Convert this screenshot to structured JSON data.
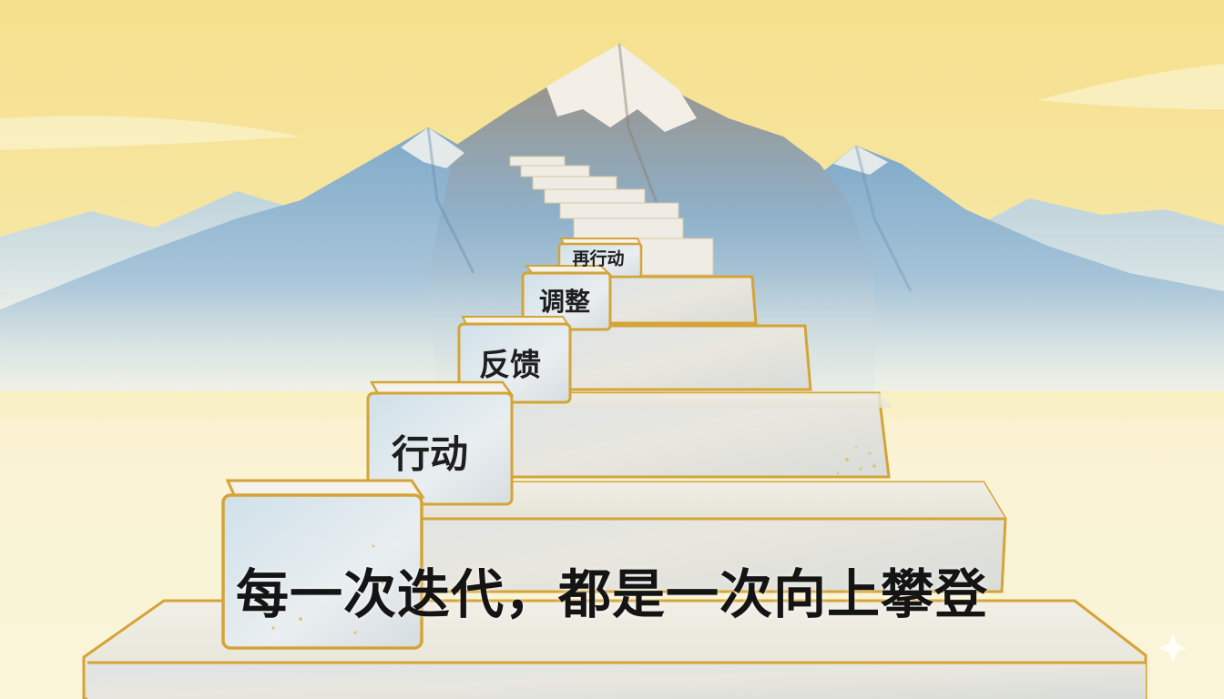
{
  "steps": [
    {
      "label": "行动"
    },
    {
      "label": "反馈"
    },
    {
      "label": "调整"
    },
    {
      "label": "再行动"
    }
  ],
  "caption": "每一次迭代，都是一次向上攀登",
  "icons": {
    "corner": "sparkle-icon"
  },
  "colors": {
    "sky_top": "#f6e59a",
    "sky_bottom": "#fbf4cf",
    "mountain_blue": "#8fb6d3",
    "snow": "#f5f1e8",
    "stair_face": "#e3e3dc",
    "gold_edge": "#d4a437",
    "text": "#1e1e1e"
  }
}
